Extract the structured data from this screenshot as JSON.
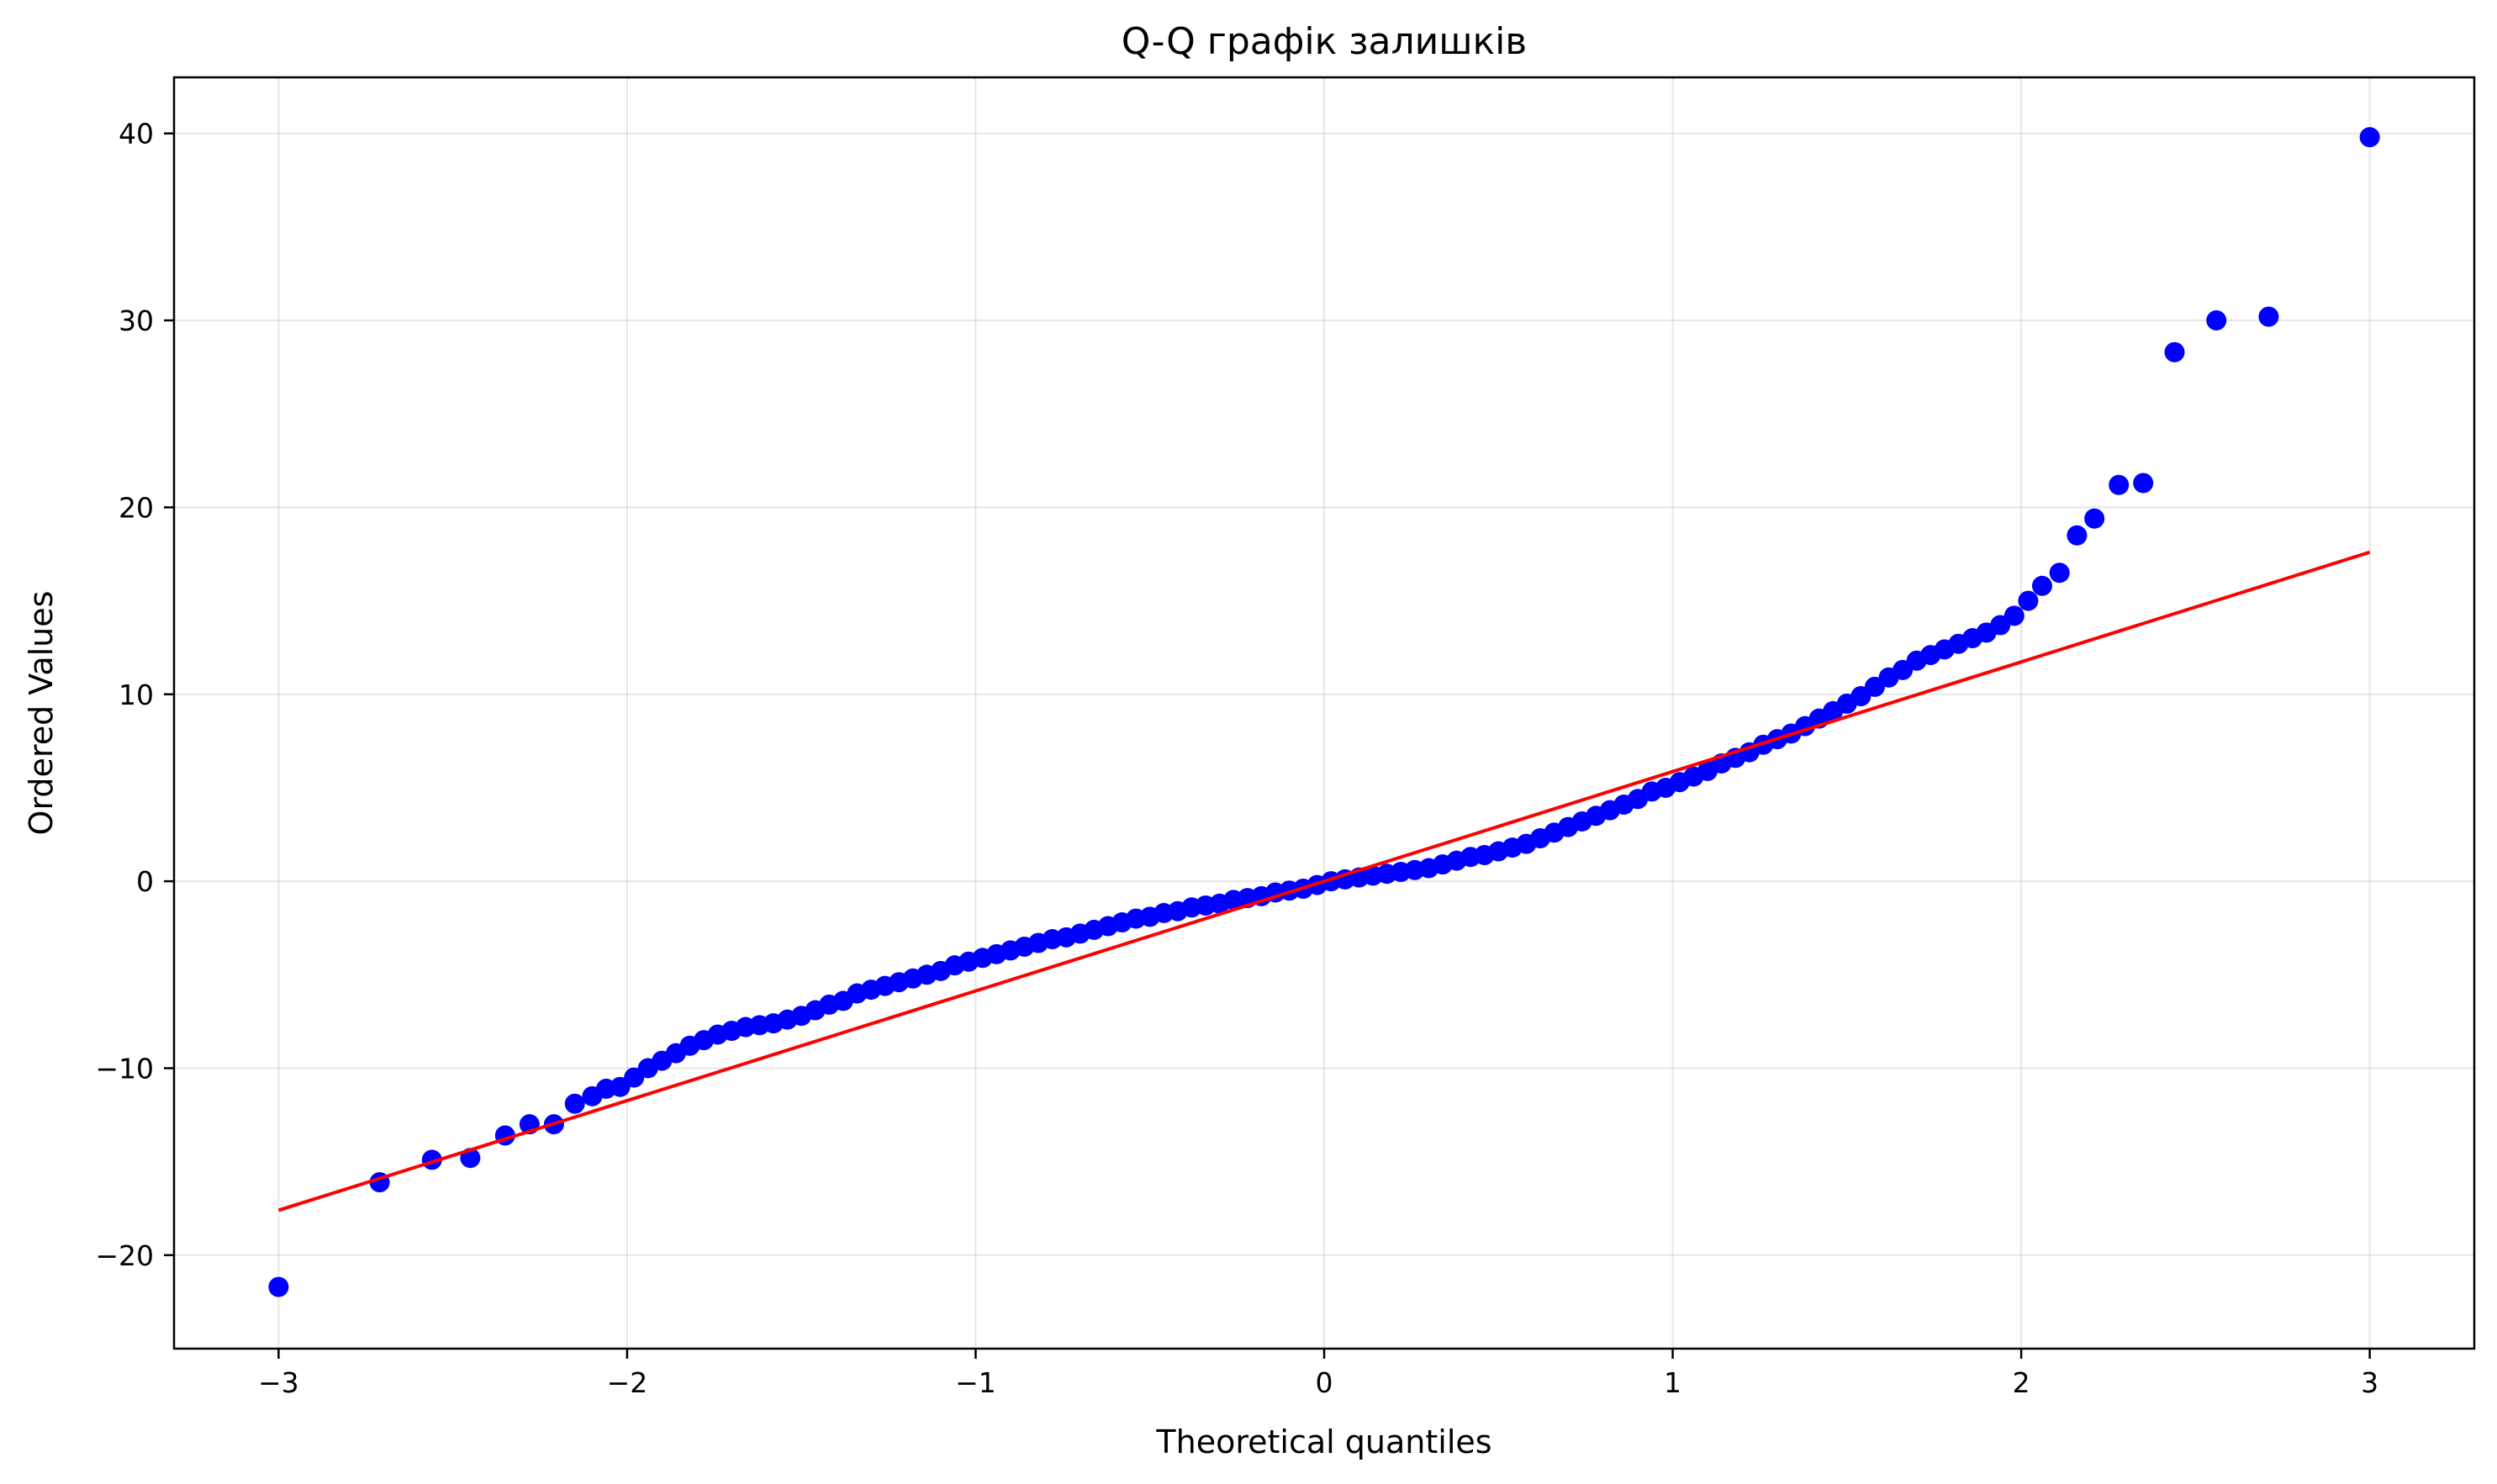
{
  "chart_data": {
    "type": "scatter",
    "title": "Q-Q графік залишків",
    "xlabel": "Theoretical quantiles",
    "ylabel": "Ordered Values",
    "xlim": [
      -3.3,
      3.3
    ],
    "ylim": [
      -25,
      43
    ],
    "xticks": [
      -3,
      -2,
      -1,
      0,
      1,
      2,
      3
    ],
    "xtick_labels": [
      "−3",
      "−2",
      "−1",
      "0",
      "1",
      "2",
      "3"
    ],
    "yticks": [
      -20,
      -10,
      0,
      10,
      20,
      30,
      40
    ],
    "ytick_labels": [
      "−20",
      "−10",
      "0",
      "10",
      "20",
      "30",
      "40"
    ],
    "grid": true,
    "series": [
      {
        "kind": "points",
        "color": "#0000ff",
        "x": [
          -3.0,
          -2.71,
          -2.56,
          -2.45,
          -2.35,
          -2.28,
          -2.21,
          -2.15,
          -2.1,
          -2.06,
          -2.02,
          -1.98,
          -1.94,
          -1.9,
          -1.86,
          -1.82,
          -1.78,
          -1.74,
          -1.7,
          -1.66,
          -1.62,
          -1.58,
          -1.54,
          -1.5,
          -1.46,
          -1.42,
          -1.38,
          -1.34,
          -1.3,
          -1.26,
          -1.22,
          -1.18,
          -1.14,
          -1.1,
          -1.06,
          -1.02,
          -0.98,
          -0.94,
          -0.9,
          -0.86,
          -0.82,
          -0.78,
          -0.74,
          -0.7,
          -0.66,
          -0.62,
          -0.58,
          -0.54,
          -0.5,
          -0.46,
          -0.42,
          -0.38,
          -0.34,
          -0.3,
          -0.26,
          -0.22,
          -0.18,
          -0.14,
          -0.1,
          -0.06,
          -0.02,
          0.02,
          0.06,
          0.1,
          0.14,
          0.18,
          0.22,
          0.26,
          0.3,
          0.34,
          0.38,
          0.42,
          0.46,
          0.5,
          0.54,
          0.58,
          0.62,
          0.66,
          0.7,
          0.74,
          0.78,
          0.82,
          0.86,
          0.9,
          0.94,
          0.98,
          1.02,
          1.06,
          1.1,
          1.14,
          1.18,
          1.22,
          1.26,
          1.3,
          1.34,
          1.38,
          1.42,
          1.46,
          1.5,
          1.54,
          1.58,
          1.62,
          1.66,
          1.7,
          1.74,
          1.78,
          1.82,
          1.86,
          1.9,
          1.94,
          1.98,
          2.02,
          2.06,
          2.11,
          2.16,
          2.21,
          2.28,
          2.35,
          2.44,
          2.56,
          2.71,
          3.0
        ],
        "y": [
          -21.7,
          -16.1,
          -14.9,
          -14.8,
          -13.6,
          -13.0,
          -13.0,
          -11.9,
          -11.5,
          -11.1,
          -11.0,
          -10.5,
          -10.0,
          -9.6,
          -9.2,
          -8.8,
          -8.5,
          -8.2,
          -8.0,
          -7.8,
          -7.7,
          -7.6,
          -7.4,
          -7.2,
          -6.9,
          -6.6,
          -6.4,
          -6.0,
          -5.8,
          -5.6,
          -5.4,
          -5.2,
          -5.0,
          -4.8,
          -4.5,
          -4.3,
          -4.1,
          -3.9,
          -3.7,
          -3.5,
          -3.3,
          -3.1,
          -3.0,
          -2.8,
          -2.6,
          -2.4,
          -2.2,
          -2.0,
          -1.9,
          -1.7,
          -1.6,
          -1.4,
          -1.3,
          -1.2,
          -1.0,
          -0.9,
          -0.8,
          -0.6,
          -0.5,
          -0.4,
          -0.2,
          0.0,
          0.1,
          0.2,
          0.3,
          0.4,
          0.5,
          0.6,
          0.7,
          0.9,
          1.1,
          1.3,
          1.4,
          1.6,
          1.8,
          2.0,
          2.3,
          2.6,
          2.9,
          3.2,
          3.5,
          3.8,
          4.1,
          4.4,
          4.8,
          5.0,
          5.3,
          5.6,
          5.9,
          6.3,
          6.6,
          6.9,
          7.3,
          7.6,
          7.9,
          8.3,
          8.7,
          9.1,
          9.5,
          9.9,
          10.4,
          10.9,
          11.3,
          11.8,
          12.1,
          12.4,
          12.7,
          13.0,
          13.3,
          13.7,
          14.2,
          15.0,
          15.8,
          16.5,
          18.5,
          19.4,
          21.2,
          21.3,
          28.3,
          30.0,
          30.2,
          39.8
        ]
      },
      {
        "kind": "line",
        "color": "#ff0000",
        "x": [
          -3.0,
          3.0
        ],
        "y": [
          -17.6,
          17.6
        ]
      }
    ]
  }
}
